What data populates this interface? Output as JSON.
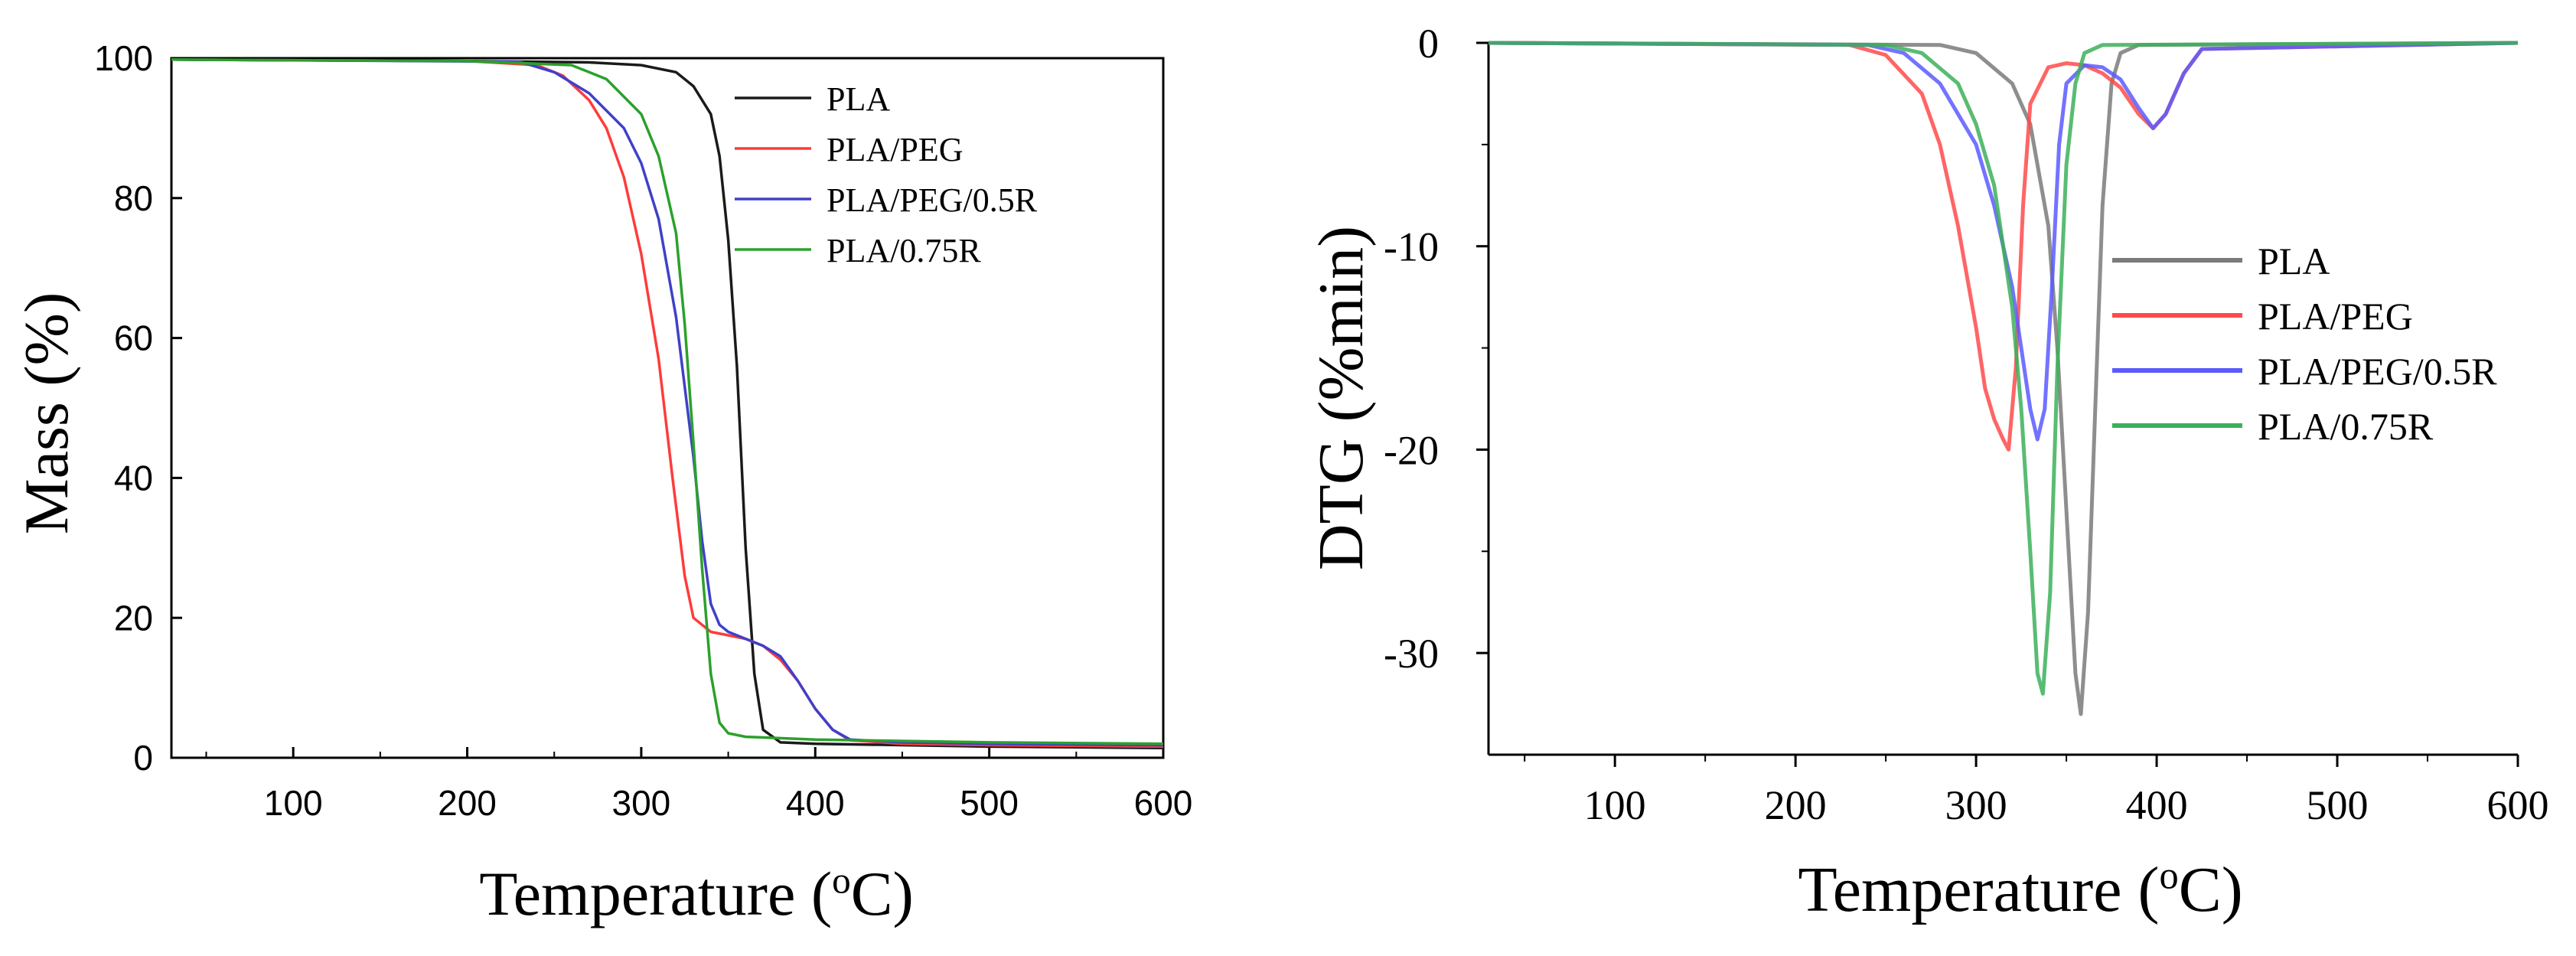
{
  "chart_data": [
    {
      "type": "line",
      "id": "tga",
      "xlabel": "Temperature (",
      "xlabel_sup": "o",
      "xlabel_unit": "C)",
      "ylabel": "Mass (%)",
      "xlim": [
        30,
        600
      ],
      "ylim": [
        0,
        100
      ],
      "xticks": [
        100,
        200,
        300,
        400,
        500,
        600
      ],
      "yticks": [
        0,
        20,
        40,
        60,
        80,
        100
      ],
      "grid": false,
      "legend_position": "top-right",
      "series": [
        {
          "name": "PLA",
          "color": "#1a1a1a",
          "x": [
            30,
            200,
            270,
            300,
            320,
            330,
            340,
            345,
            350,
            355,
            360,
            365,
            370,
            380,
            400,
            450,
            500,
            600
          ],
          "y": [
            99.8,
            99.6,
            99.4,
            99,
            98,
            96,
            92,
            86,
            74,
            56,
            30,
            12,
            4,
            2.2,
            2,
            1.8,
            1.6,
            1.4
          ]
        },
        {
          "name": "PLA/PEG",
          "color": "#ff3b3b",
          "x": [
            30,
            200,
            240,
            255,
            270,
            280,
            290,
            300,
            310,
            318,
            325,
            330,
            340,
            350,
            360,
            370,
            380,
            390,
            400,
            410,
            420,
            450,
            500,
            600
          ],
          "y": [
            99.8,
            99.6,
            99,
            97.5,
            94,
            90,
            83,
            72,
            57,
            40,
            26,
            20,
            18,
            17.5,
            17,
            16,
            14,
            11,
            7,
            4,
            2.5,
            2,
            1.8,
            1.6
          ]
        },
        {
          "name": "PLA/PEG/0.5R",
          "color": "#4040c8",
          "x": [
            30,
            230,
            250,
            270,
            290,
            300,
            310,
            320,
            330,
            335,
            340,
            345,
            350,
            360,
            370,
            380,
            390,
            400,
            410,
            420,
            450,
            500,
            600
          ],
          "y": [
            99.8,
            99.5,
            98,
            95,
            90,
            85,
            77,
            63,
            43,
            31,
            22,
            19,
            18,
            17,
            16,
            14.5,
            11,
            7,
            4,
            2.6,
            2.2,
            2,
            1.8
          ]
        },
        {
          "name": "PLA/0.75R",
          "color": "#2ca02c",
          "x": [
            30,
            200,
            260,
            280,
            300,
            310,
            320,
            325,
            330,
            335,
            340,
            345,
            350,
            360,
            400,
            500,
            600
          ],
          "y": [
            99.8,
            99.6,
            99,
            97,
            92,
            86,
            75,
            62,
            45,
            27,
            12,
            5,
            3.5,
            3,
            2.6,
            2.2,
            2
          ]
        }
      ]
    },
    {
      "type": "line",
      "id": "dtg",
      "xlabel": "Temperature (",
      "xlabel_sup": "o",
      "xlabel_unit": "C)",
      "ylabel": "DTG (%min)",
      "xlim": [
        30,
        600
      ],
      "ylim": [
        -35,
        0
      ],
      "xticks": [
        100,
        200,
        300,
        400,
        500,
        600
      ],
      "yticks": [
        0,
        -10,
        -20,
        -30
      ],
      "ytick_labels": [
        "0",
        "-10",
        "-20",
        "-30"
      ],
      "grid": false,
      "legend_position": "center-right",
      "series": [
        {
          "name": "PLA",
          "color": "#7a7a7a",
          "x": [
            30,
            280,
            300,
            320,
            330,
            340,
            345,
            350,
            355,
            358,
            362,
            366,
            370,
            375,
            380,
            390,
            600
          ],
          "y": [
            0,
            -0.1,
            -0.5,
            -2,
            -4,
            -9,
            -15,
            -23,
            -31,
            -33,
            -28,
            -18,
            -8,
            -2,
            -0.5,
            -0.1,
            0
          ]
        },
        {
          "name": "PLA/PEG",
          "color": "#ff4a4a",
          "x": [
            30,
            230,
            250,
            270,
            280,
            290,
            300,
            305,
            310,
            315,
            318,
            322,
            326,
            330,
            340,
            350,
            360,
            370,
            380,
            390,
            398,
            405,
            415,
            425,
            600
          ],
          "y": [
            0,
            -0.1,
            -0.6,
            -2.5,
            -5,
            -9,
            -14,
            -17,
            -18.5,
            -19.5,
            -20,
            -16,
            -8,
            -3,
            -1.2,
            -1,
            -1.1,
            -1.5,
            -2.2,
            -3.5,
            -4.2,
            -3.5,
            -1.5,
            -0.3,
            0
          ]
        },
        {
          "name": "PLA/PEG/0.5R",
          "color": "#5a5aff",
          "x": [
            30,
            240,
            260,
            280,
            300,
            310,
            320,
            325,
            330,
            334,
            338,
            342,
            346,
            350,
            360,
            370,
            380,
            390,
            398,
            405,
            415,
            425,
            600
          ],
          "y": [
            0,
            -0.1,
            -0.5,
            -2,
            -5,
            -8,
            -12,
            -15,
            -18,
            -19.5,
            -18,
            -12,
            -5,
            -2,
            -1.1,
            -1.2,
            -1.8,
            -3.2,
            -4.2,
            -3.5,
            -1.5,
            -0.3,
            0
          ]
        },
        {
          "name": "PLA/0.75R",
          "color": "#3cb05a",
          "x": [
            30,
            250,
            270,
            290,
            300,
            310,
            320,
            325,
            330,
            334,
            337,
            341,
            345,
            350,
            355,
            360,
            370,
            600
          ],
          "y": [
            0,
            -0.1,
            -0.5,
            -2,
            -4,
            -7,
            -13,
            -18,
            -25,
            -31,
            -32,
            -27,
            -16,
            -6,
            -2,
            -0.5,
            -0.1,
            0
          ]
        }
      ]
    }
  ]
}
